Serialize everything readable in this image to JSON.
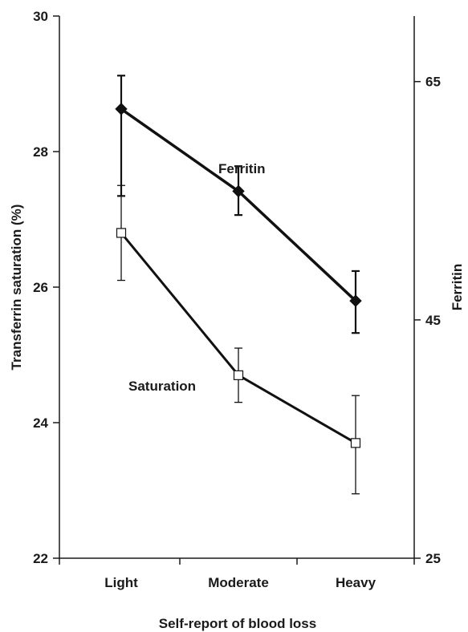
{
  "chart_data": {
    "type": "line",
    "xlabel": "Self-report of blood loss",
    "ylabel_left": "Transferrin saturation (%)",
    "ylabel_right": "Ferritin",
    "categories": [
      "Light",
      "Moderate",
      "Heavy"
    ],
    "ylim_left": [
      22,
      30
    ],
    "yticks_left": [
      "22",
      "24",
      "26",
      "28",
      "30"
    ],
    "ylim_right": [
      25,
      70.5
    ],
    "yticks_right": [
      "25",
      "45",
      "65"
    ],
    "grid": false,
    "series": [
      {
        "name": "Ferritin",
        "axis": "right",
        "marker": "filled-diamond",
        "color": "#111111",
        "values": [
          62.7,
          55.8,
          46.6
        ],
        "error_low": [
          55.4,
          53.8,
          43.9
        ],
        "error_high": [
          65.5,
          57.9,
          49.1
        ]
      },
      {
        "name": "Saturation",
        "axis": "left",
        "marker": "open-square",
        "color": "#111111",
        "values": [
          26.8,
          24.7,
          23.7
        ],
        "error_low": [
          26.1,
          24.3,
          22.95
        ],
        "error_high": [
          27.5,
          25.1,
          24.4
        ]
      }
    ]
  }
}
